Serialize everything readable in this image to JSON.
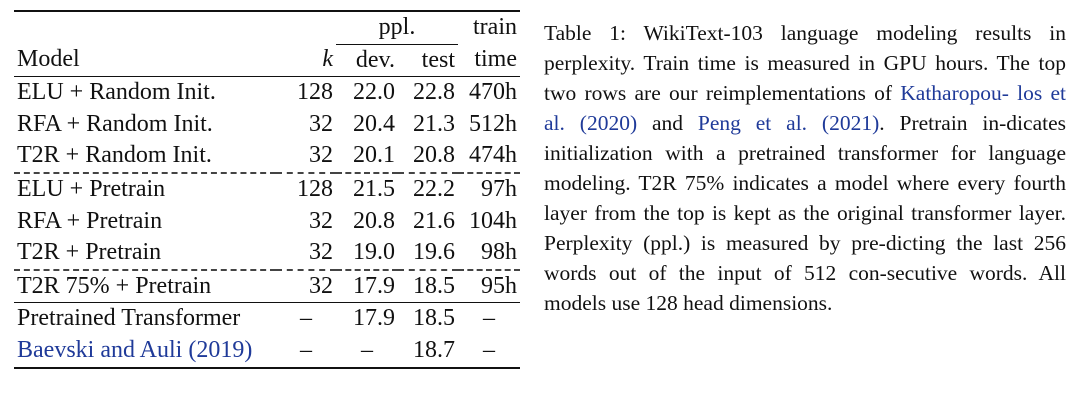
{
  "table": {
    "header": {
      "ppl_group": "ppl.",
      "train_group": "train",
      "model_label": "Model",
      "k_label": "k",
      "dev_label": "dev.",
      "test_label": "test",
      "time_label": "time"
    },
    "rows": [
      {
        "model": "ELU + Random Init.",
        "k": "128",
        "dev": "22.0",
        "test": "22.8",
        "time": "470h"
      },
      {
        "model": "RFA + Random Init.",
        "k": "32",
        "dev": "20.4",
        "test": "21.3",
        "time": "512h"
      },
      {
        "model": "T2R + Random Init.",
        "k": "32",
        "dev": "20.1",
        "test": "20.8",
        "time": "474h"
      },
      {
        "model": "ELU + Pretrain",
        "k": "128",
        "dev": "21.5",
        "test": "22.2",
        "time": "97h"
      },
      {
        "model": "RFA + Pretrain",
        "k": "32",
        "dev": "20.8",
        "test": "21.6",
        "time": "104h"
      },
      {
        "model": "T2R + Pretrain",
        "k": "32",
        "dev": "19.0",
        "test": "19.6",
        "time": "98h"
      },
      {
        "model": "T2R 75% + Pretrain",
        "k": "32",
        "dev": "17.9",
        "test": "18.5",
        "time": "95h"
      },
      {
        "model": "Pretrained Transformer",
        "k": "–",
        "dev": "17.9",
        "test": "18.5",
        "time": "–"
      },
      {
        "model_link": "Baevski and Auli",
        "model_year": "(2019)",
        "k": "–",
        "dev": "–",
        "test": "18.7",
        "time": "–"
      }
    ]
  },
  "caption": {
    "t1": "Table 1: WikiText-103 language modeling results in perplexity. Train time is measured in GPU hours. The top two rows are our reimplementations of ",
    "link1a": "Katharopou-",
    "link1b": "los et al.",
    "link1c": "(2020)",
    "t2": " and ",
    "link2a": "Peng et al.",
    "link2b": "(2021)",
    "t3": ". Pretrain in-dicates initialization with a pretrained transformer for language modeling. T2R 75% indicates a model where every fourth layer from the top is kept as the original transformer layer. Perplexity (ppl.) is measured by pre-dicting the last 256 words out of the input of 512 con-secutive words. All models use 128 head dimensions."
  }
}
